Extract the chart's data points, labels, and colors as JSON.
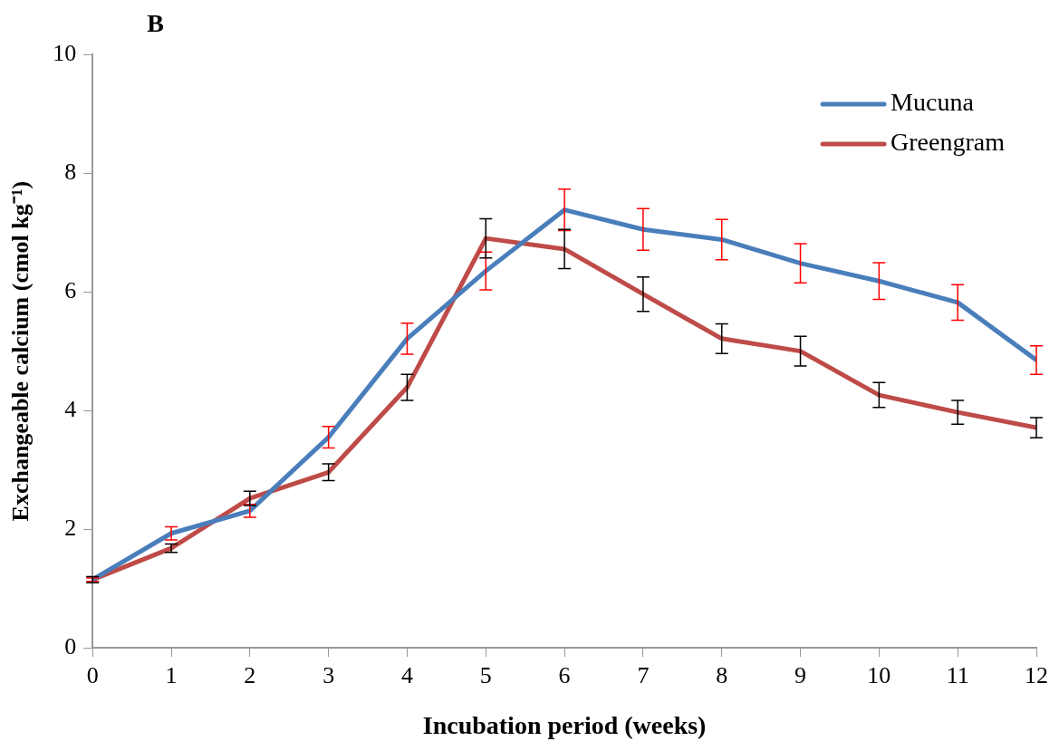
{
  "chart_data": {
    "type": "line",
    "title": "B",
    "xlabel": "Incubation period (weeks)",
    "ylabel": "Exchangeable calcium (cmol kg⁻¹)",
    "x": [
      0,
      1,
      2,
      3,
      4,
      5,
      6,
      7,
      8,
      9,
      10,
      11,
      12
    ],
    "xlim": [
      0,
      12
    ],
    "xticks": [
      0,
      1,
      2,
      3,
      4,
      5,
      6,
      7,
      8,
      9,
      10,
      11,
      12
    ],
    "ylim": [
      0,
      10
    ],
    "yticks": [
      0,
      2,
      4,
      6,
      8,
      10
    ],
    "grid": false,
    "legend": "top right",
    "marker": "none",
    "line_style": "solid",
    "series": [
      {
        "name": "Mucuna",
        "color": "#4a7ebb",
        "values": [
          1.15,
          1.93,
          2.31,
          3.55,
          5.21,
          6.35,
          7.38,
          7.05,
          6.88,
          6.48,
          6.18,
          5.82,
          4.85
        ],
        "errors": [
          0.03,
          0.11,
          0.11,
          0.18,
          0.26,
          0.32,
          0.35,
          0.35,
          0.34,
          0.33,
          0.31,
          0.3,
          0.24
        ]
      },
      {
        "name": "Greengram",
        "color": "#be4b48",
        "values": [
          1.15,
          1.68,
          2.52,
          2.96,
          4.39,
          6.9,
          6.72,
          5.96,
          5.21,
          5.0,
          4.26,
          3.97,
          3.71
        ],
        "errors": [
          0.05,
          0.07,
          0.12,
          0.14,
          0.22,
          0.33,
          0.33,
          0.29,
          0.25,
          0.25,
          0.21,
          0.2,
          0.17
        ]
      }
    ]
  }
}
